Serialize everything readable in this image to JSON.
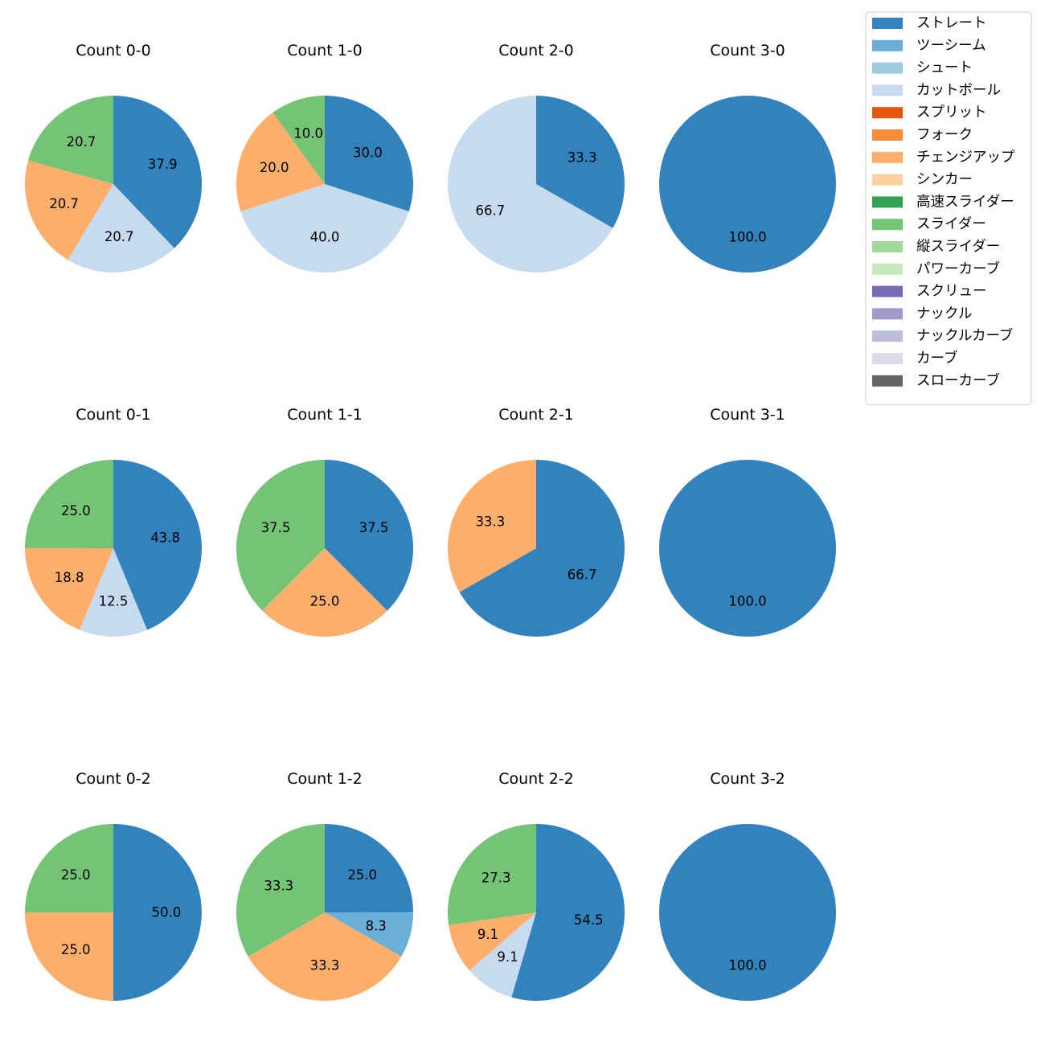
{
  "chart_data": {
    "type": "pie",
    "legend": {
      "placement": "top-right",
      "entries": [
        {
          "name": "ストレート",
          "color": "#3182bd"
        },
        {
          "name": "ツーシーム",
          "color": "#6baed6"
        },
        {
          "name": "シュート",
          "color": "#9ecae1"
        },
        {
          "name": "カットボール",
          "color": "#c6dbef"
        },
        {
          "name": "スプリット",
          "color": "#e6550d"
        },
        {
          "name": "フォーク",
          "color": "#fd8d3c"
        },
        {
          "name": "チェンジアップ",
          "color": "#fdae6b"
        },
        {
          "name": "シンカー",
          "color": "#fdd0a2"
        },
        {
          "name": "高速スライダー",
          "color": "#31a354"
        },
        {
          "name": "スライダー",
          "color": "#74c476"
        },
        {
          "name": "縦スライダー",
          "color": "#a1d99b"
        },
        {
          "name": "パワーカーブ",
          "color": "#c7e9c0"
        },
        {
          "name": "スクリュー",
          "color": "#756bb1"
        },
        {
          "name": "ナックル",
          "color": "#9e9ac8"
        },
        {
          "name": "ナックルカーブ",
          "color": "#bcbddc"
        },
        {
          "name": "カーブ",
          "color": "#dadaeb"
        },
        {
          "name": "スローカーブ",
          "color": "#636363"
        }
      ]
    },
    "pies": [
      {
        "title": "Count 0-0",
        "slices": [
          {
            "pitch": "ストレート",
            "value": 37.9,
            "label": "37.9"
          },
          {
            "pitch": "カットボール",
            "value": 20.7,
            "label": "20.7"
          },
          {
            "pitch": "チェンジアップ",
            "value": 20.7,
            "label": "20.7"
          },
          {
            "pitch": "スライダー",
            "value": 20.7,
            "label": "20.7"
          }
        ]
      },
      {
        "title": "Count 1-0",
        "slices": [
          {
            "pitch": "ストレート",
            "value": 30.0,
            "label": "30.0"
          },
          {
            "pitch": "カットボール",
            "value": 40.0,
            "label": "40.0"
          },
          {
            "pitch": "チェンジアップ",
            "value": 20.0,
            "label": "20.0"
          },
          {
            "pitch": "スライダー",
            "value": 10.0,
            "label": "10.0"
          }
        ]
      },
      {
        "title": "Count 2-0",
        "slices": [
          {
            "pitch": "ストレート",
            "value": 33.3,
            "label": "33.3"
          },
          {
            "pitch": "カットボール",
            "value": 66.7,
            "label": "66.7"
          }
        ]
      },
      {
        "title": "Count 3-0",
        "slices": [
          {
            "pitch": "ストレート",
            "value": 100.0,
            "label": "100.0"
          }
        ]
      },
      {
        "title": "Count 0-1",
        "slices": [
          {
            "pitch": "ストレート",
            "value": 43.8,
            "label": "43.8"
          },
          {
            "pitch": "カットボール",
            "value": 12.5,
            "label": "12.5"
          },
          {
            "pitch": "チェンジアップ",
            "value": 18.8,
            "label": "18.8"
          },
          {
            "pitch": "スライダー",
            "value": 25.0,
            "label": "25.0"
          }
        ]
      },
      {
        "title": "Count 1-1",
        "slices": [
          {
            "pitch": "ストレート",
            "value": 37.5,
            "label": "37.5"
          },
          {
            "pitch": "チェンジアップ",
            "value": 25.0,
            "label": "25.0"
          },
          {
            "pitch": "スライダー",
            "value": 37.5,
            "label": "37.5"
          }
        ]
      },
      {
        "title": "Count 2-1",
        "slices": [
          {
            "pitch": "ストレート",
            "value": 66.7,
            "label": "66.7"
          },
          {
            "pitch": "チェンジアップ",
            "value": 33.3,
            "label": "33.3"
          }
        ]
      },
      {
        "title": "Count 3-1",
        "slices": [
          {
            "pitch": "ストレート",
            "value": 100.0,
            "label": "100.0"
          }
        ]
      },
      {
        "title": "Count 0-2",
        "slices": [
          {
            "pitch": "ストレート",
            "value": 50.0,
            "label": "50.0"
          },
          {
            "pitch": "チェンジアップ",
            "value": 25.0,
            "label": "25.0"
          },
          {
            "pitch": "スライダー",
            "value": 25.0,
            "label": "25.0"
          }
        ]
      },
      {
        "title": "Count 1-2",
        "slices": [
          {
            "pitch": "ストレート",
            "value": 25.0,
            "label": "25.0"
          },
          {
            "pitch": "ツーシーム",
            "value": 8.3,
            "label": "8.3"
          },
          {
            "pitch": "チェンジアップ",
            "value": 33.3,
            "label": "33.3"
          },
          {
            "pitch": "スライダー",
            "value": 33.3,
            "label": "33.3"
          }
        ]
      },
      {
        "title": "Count 2-2",
        "slices": [
          {
            "pitch": "ストレート",
            "value": 54.5,
            "label": "54.5"
          },
          {
            "pitch": "カットボール",
            "value": 9.1,
            "label": "9.1"
          },
          {
            "pitch": "チェンジアップ",
            "value": 9.1,
            "label": "9.1"
          },
          {
            "pitch": "スライダー",
            "value": 27.3,
            "label": "27.3"
          }
        ]
      },
      {
        "title": "Count 3-2",
        "slices": [
          {
            "pitch": "ストレート",
            "value": 100.0,
            "label": "100.0"
          }
        ]
      }
    ]
  }
}
